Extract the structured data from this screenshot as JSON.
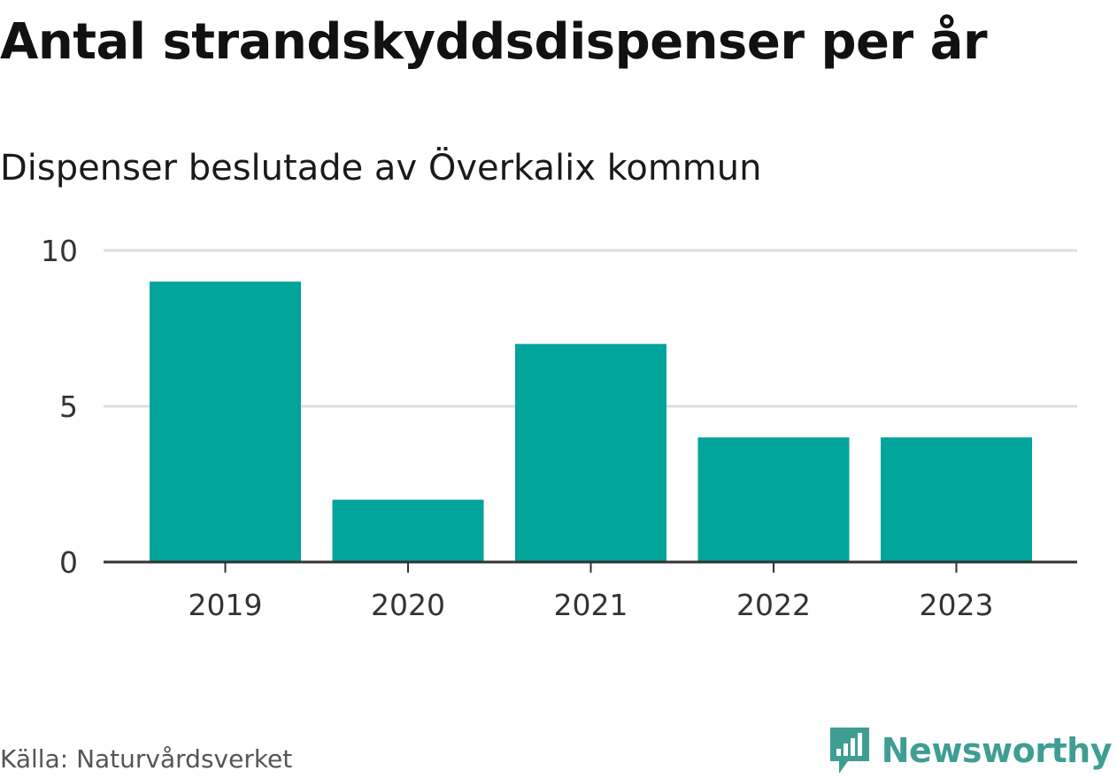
{
  "header": {
    "title": "Antal strandskyddsdispenser per år",
    "subtitle": "Dispenser beslutade av Överkalix kommun"
  },
  "footer": {
    "source": "Källa: Naturvårdsverket",
    "brand": "Newsworthy",
    "brand_icon": "bar-chart-speech-bubble-icon"
  },
  "colors": {
    "bar": "#00a49a",
    "grid": "#dddddd",
    "axis": "#333333",
    "brand": "#3f9e93"
  },
  "chart_data": {
    "type": "bar",
    "categories": [
      "2019",
      "2020",
      "2021",
      "2022",
      "2023"
    ],
    "values": [
      9,
      2,
      7,
      4,
      4
    ],
    "title": "Antal strandskyddsdispenser per år",
    "subtitle": "Dispenser beslutade av Överkalix kommun",
    "xlabel": "",
    "ylabel": "",
    "ylim": [
      0,
      10
    ],
    "yticks": [
      "0",
      "5",
      "10"
    ],
    "grid": true,
    "legend": "none"
  }
}
